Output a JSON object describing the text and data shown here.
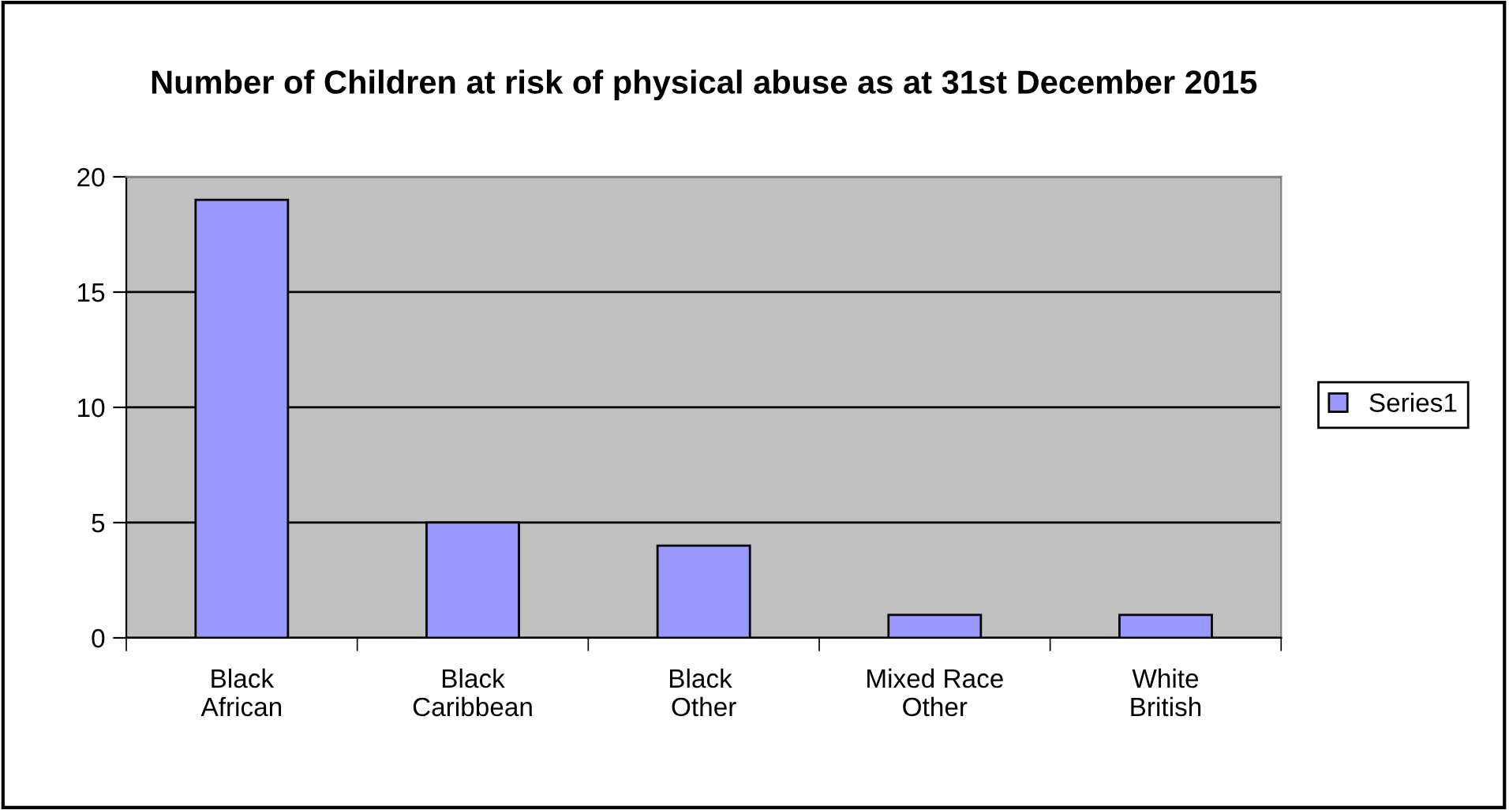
{
  "chart_data": {
    "type": "bar",
    "title": "Number of Children at risk of physical abuse as at 31st December 2015",
    "categories": [
      "Black African",
      "Black Caribbean",
      "Black  Other",
      "Mixed Race Other",
      "White British"
    ],
    "series": [
      {
        "name": "Series1",
        "color": "#9999ff",
        "values": [
          19,
          5,
          4,
          1,
          1
        ]
      }
    ],
    "ylim": [
      0,
      20
    ],
    "yticks": [
      0,
      5,
      10,
      15,
      20
    ],
    "grid": "y",
    "legend": "right"
  }
}
